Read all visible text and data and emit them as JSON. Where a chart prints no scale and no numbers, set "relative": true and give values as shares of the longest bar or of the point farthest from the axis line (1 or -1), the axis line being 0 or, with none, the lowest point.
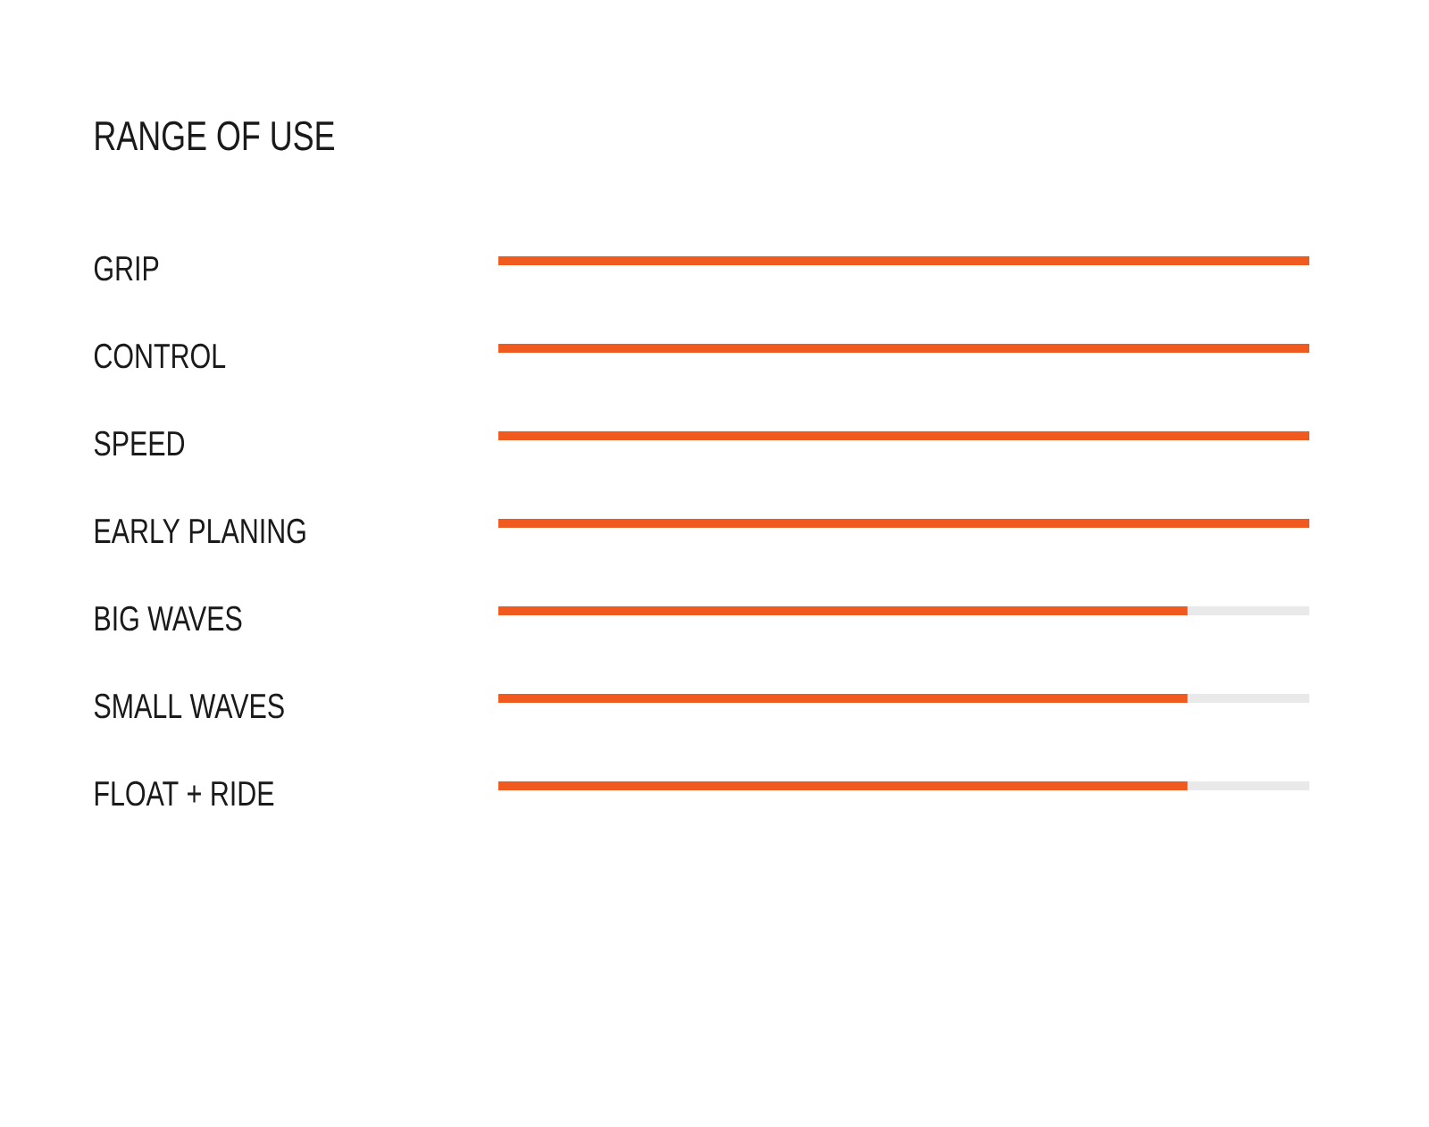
{
  "chart_data": {
    "type": "bar",
    "title": "RANGE OF USE",
    "orientation": "horizontal",
    "stacked": true,
    "relative": true,
    "categories": [
      "GRIP",
      "CONTROL",
      "SPEED",
      "EARLY PLANING",
      "BIG WAVES",
      "SMALL WAVES",
      "FLOAT + RIDE"
    ],
    "series": [
      {
        "color": "#f05a1f",
        "values": [
          1,
          1,
          1,
          1,
          0.85,
          0.85,
          0.85
        ]
      },
      {
        "color": "#e9e9e9",
        "values": [
          0,
          0,
          0,
          0,
          0.15,
          0.15,
          0.15
        ]
      }
    ]
  }
}
